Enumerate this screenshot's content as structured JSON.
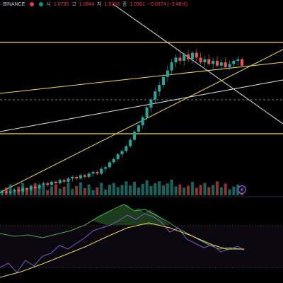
{
  "legend": {
    "symbol": "· BINANCE",
    "open_label": "시",
    "open_value": "1.0735",
    "high_label": "고",
    "high_value": "1.0944",
    "low_label": "저",
    "low_value": "1.0253",
    "close_label": "종",
    "close_value": "1.0361",
    "change_value": "−0.0374 (−3.48%)",
    "dots": [
      "#f23645",
      "#089981"
    ]
  },
  "events_badge": "⚡",
  "colors": {
    "up": "#26a69a",
    "down": "#ef5350",
    "trendline_yellow": "#f0d860",
    "trendline_white": "#e6e6e6",
    "rsi_line": "#7e57c2",
    "rsi_ma": "#f0d860",
    "background": "#000000"
  },
  "chart_data": {
    "type": "candlestick",
    "candles": [
      [
        1.0,
        1.2,
        0.9,
        1.1
      ],
      [
        1.1,
        1.2,
        0.9,
        1.0
      ],
      [
        1.0,
        1.2,
        0.9,
        1.1
      ],
      [
        1.1,
        1.3,
        1.0,
        1.2
      ],
      [
        1.2,
        1.3,
        1.0,
        1.1
      ],
      [
        1.1,
        1.4,
        1.0,
        1.3
      ],
      [
        1.3,
        1.4,
        1.1,
        1.2
      ],
      [
        1.2,
        1.5,
        1.1,
        1.4
      ],
      [
        1.4,
        1.5,
        1.2,
        1.3
      ],
      [
        1.3,
        1.6,
        1.2,
        1.5
      ],
      [
        1.5,
        1.7,
        1.4,
        1.6
      ],
      [
        1.6,
        1.7,
        1.4,
        1.5
      ],
      [
        1.5,
        1.8,
        1.4,
        1.7
      ],
      [
        1.7,
        1.8,
        1.5,
        1.6
      ],
      [
        1.6,
        1.9,
        1.5,
        1.8
      ],
      [
        1.8,
        1.9,
        1.6,
        1.7
      ],
      [
        1.7,
        2.0,
        1.6,
        1.9
      ],
      [
        1.9,
        2.1,
        1.7,
        2.0
      ],
      [
        2.0,
        2.1,
        1.8,
        1.9
      ],
      [
        1.9,
        2.2,
        1.8,
        2.1
      ],
      [
        2.1,
        2.2,
        1.9,
        2.0
      ],
      [
        2.0,
        2.3,
        1.9,
        2.2
      ],
      [
        2.2,
        2.4,
        2.0,
        2.3
      ],
      [
        2.3,
        2.4,
        2.1,
        2.2
      ],
      [
        2.2,
        2.6,
        2.1,
        2.5
      ],
      [
        2.5,
        2.7,
        2.3,
        2.6
      ],
      [
        2.6,
        3.0,
        2.5,
        2.9
      ],
      [
        2.9,
        3.2,
        2.8,
        3.1
      ],
      [
        3.1,
        3.5,
        3.0,
        3.4
      ],
      [
        3.4,
        3.7,
        3.2,
        3.6
      ],
      [
        3.6,
        4.0,
        3.5,
        3.9
      ],
      [
        3.9,
        4.4,
        3.8,
        4.3
      ],
      [
        4.3,
        4.9,
        4.2,
        4.8
      ],
      [
        4.8,
        5.3,
        4.6,
        5.2
      ],
      [
        5.2,
        5.8,
        5.0,
        5.7
      ],
      [
        5.7,
        6.4,
        5.5,
        6.3
      ],
      [
        6.3,
        6.9,
        6.0,
        6.8
      ],
      [
        6.8,
        7.5,
        6.6,
        7.3
      ],
      [
        7.3,
        7.9,
        7.0,
        7.7
      ],
      [
        7.7,
        8.4,
        7.5,
        8.2
      ],
      [
        8.2,
        8.9,
        7.9,
        8.6
      ],
      [
        8.6,
        9.3,
        8.3,
        9.1
      ],
      [
        9.1,
        9.6,
        8.8,
        9.4
      ],
      [
        9.4,
        9.8,
        9.0,
        9.2
      ],
      [
        9.2,
        9.7,
        8.9,
        9.6
      ],
      [
        9.6,
        9.9,
        9.1,
        9.3
      ],
      [
        9.3,
        9.8,
        9.0,
        9.7
      ],
      [
        9.7,
        9.9,
        9.2,
        9.4
      ],
      [
        9.4,
        9.7,
        9.0,
        9.1
      ],
      [
        9.1,
        9.5,
        8.8,
        9.3
      ],
      [
        9.3,
        9.6,
        8.9,
        9.0
      ],
      [
        9.0,
        9.4,
        8.7,
        9.2
      ],
      [
        9.2,
        9.5,
        8.8,
        8.9
      ],
      [
        8.9,
        9.3,
        8.6,
        9.1
      ],
      [
        9.1,
        9.4,
        8.7,
        8.8
      ],
      [
        8.8,
        9.2,
        8.6,
        9.0
      ],
      [
        9.0,
        9.3,
        8.8,
        9.2
      ],
      [
        9.2,
        9.5,
        8.9,
        9.3
      ],
      [
        9.3,
        9.4,
        8.8,
        8.9
      ]
    ]
  }
}
